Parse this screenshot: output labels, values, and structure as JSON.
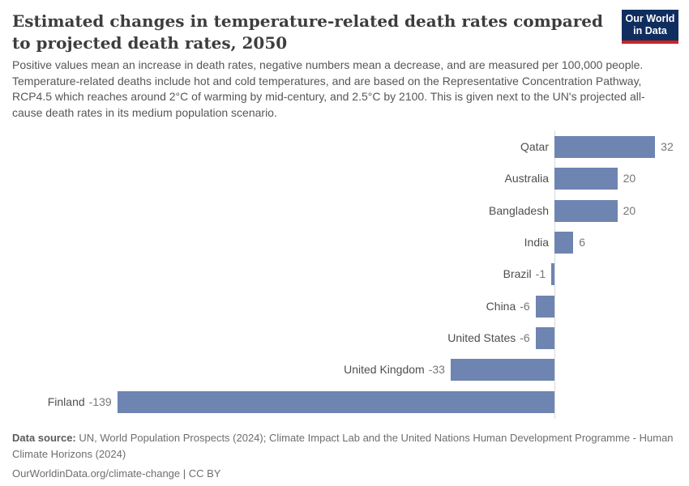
{
  "header": {
    "title": "Estimated changes in temperature-related death rates compared to projected death rates, 2050",
    "logo": {
      "line1": "Our World",
      "line2": "in Data",
      "bg_color": "#102d5f",
      "accent_color": "#cb2424"
    }
  },
  "subtitle": "Positive values mean an increase in death rates, negative numbers mean a decrease, and are measured per 100,000 people. Temperature-related deaths include hot and cold temperatures, and are based on the Representative Concentration Pathway, RCP4.5 which reaches around 2°C of warming by mid-century, and 2.5°C by 2100. This is given next to the UN's projected all-cause death rates in its medium population scenario.",
  "chart_data": {
    "type": "bar",
    "orientation": "horizontal",
    "title": "Estimated changes in temperature-related death rates compared to projected death rates, 2050",
    "categories": [
      "Qatar",
      "Australia",
      "Bangladesh",
      "India",
      "Brazil",
      "China",
      "United States",
      "United Kingdom",
      "Finland"
    ],
    "values": [
      32,
      20,
      20,
      6,
      -1,
      -6,
      -6,
      -33,
      -139
    ],
    "xlim": [
      -139,
      32
    ],
    "unit": "per 100,000 people",
    "grid": false,
    "value_labels": true,
    "bar_color": "#6e84b1",
    "axis_line_color": "#d9d9d9",
    "category_label_color": "#4e4e4e",
    "value_label_color": "#767676"
  },
  "footer": {
    "data_source_label": "Data source:",
    "data_source": "UN, World Population Prospects (2024); Climate Impact Lab and the United Nations Human Development Programme - Human Climate Horizons (2024)",
    "license_line": "OurWorldinData.org/climate-change | CC BY"
  }
}
